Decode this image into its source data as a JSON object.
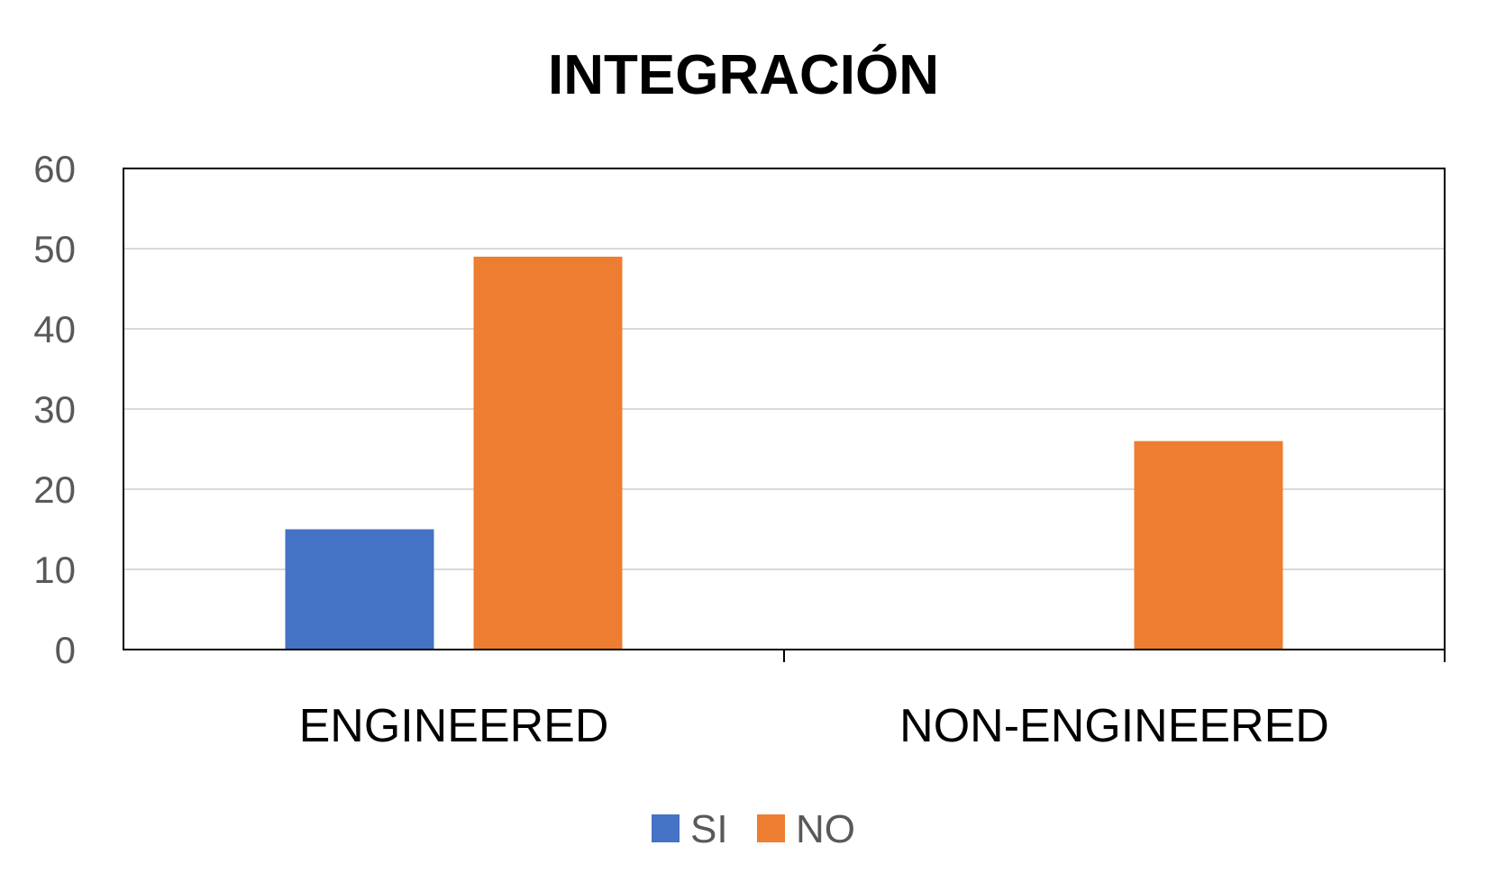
{
  "chart_data": {
    "type": "bar",
    "title": "INTEGRACIÓN",
    "xlabel": "",
    "ylabel": "",
    "categories": [
      "ENGINEERED",
      "NON-ENGINEERED"
    ],
    "series": [
      {
        "name": "SI",
        "values": [
          15,
          0
        ],
        "color": "#4472C4"
      },
      {
        "name": "NO",
        "values": [
          49,
          26
        ],
        "color": "#ED7D31"
      }
    ],
    "ylim": [
      0,
      60
    ],
    "yticks": [
      0,
      10,
      20,
      30,
      40,
      50,
      60
    ],
    "grid": true,
    "gridline_color": "#D9D9D9",
    "legend_position": "bottom"
  }
}
